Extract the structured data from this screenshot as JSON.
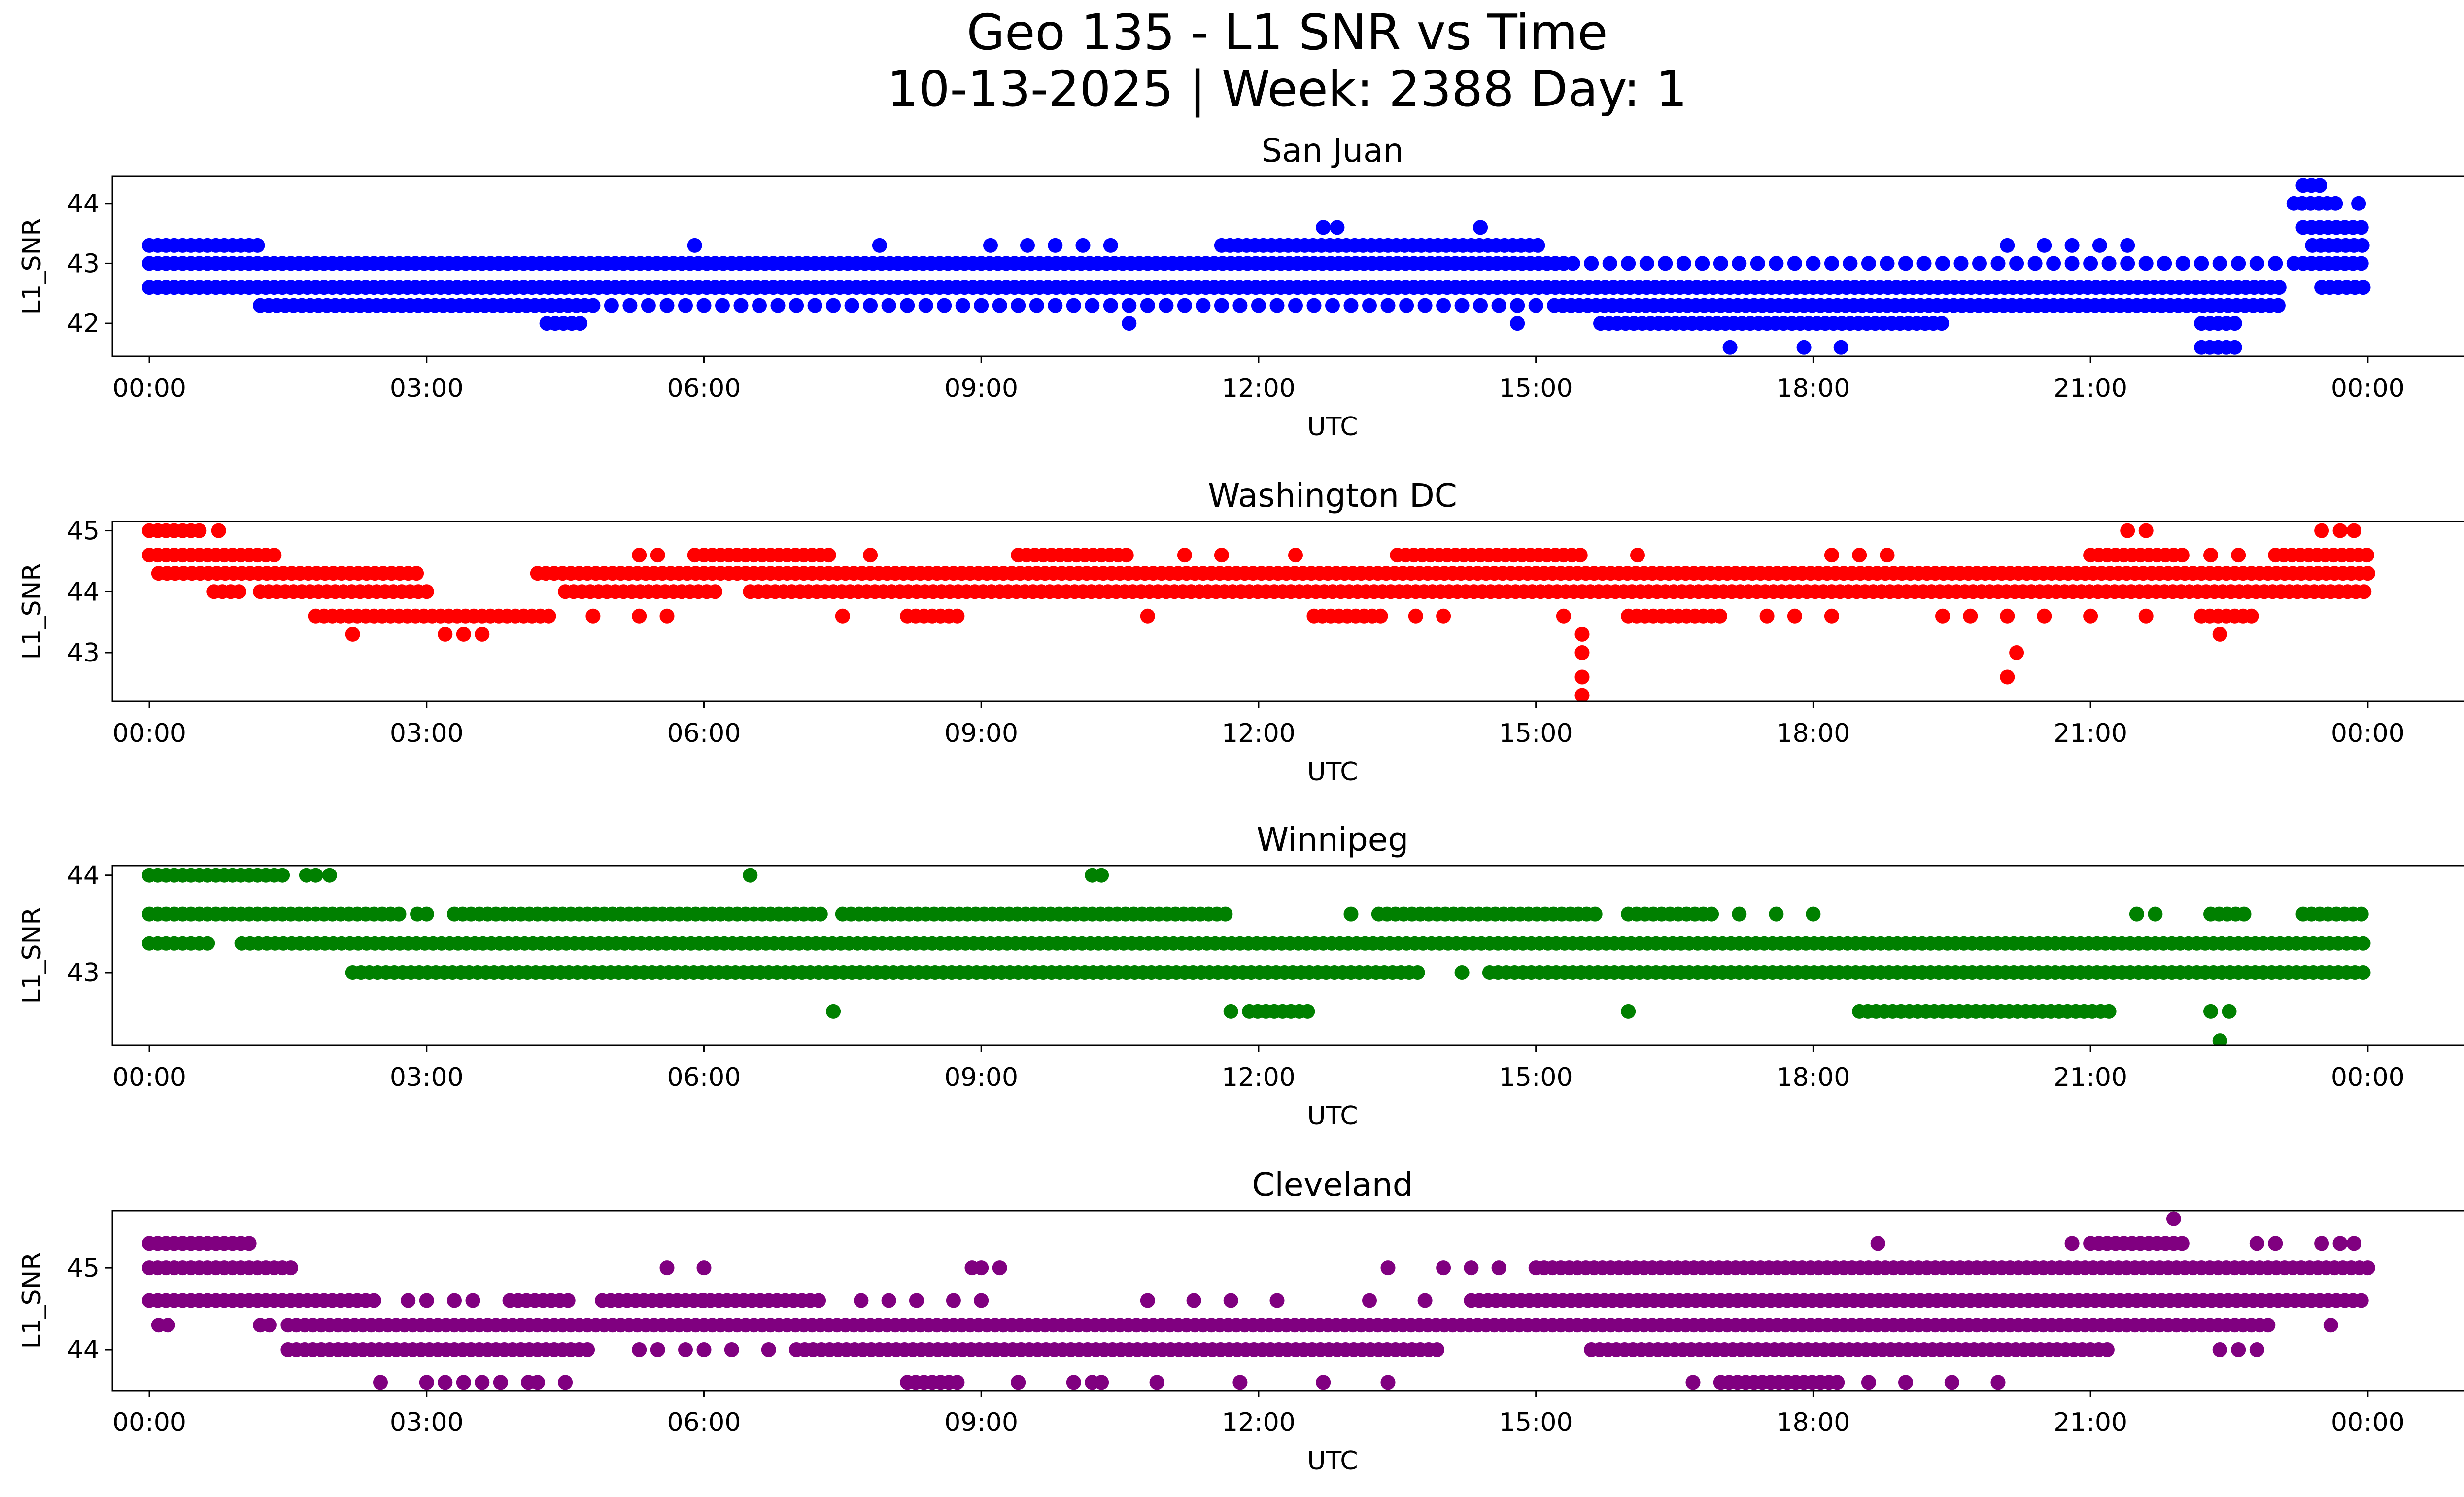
{
  "figure": {
    "title_line1": "Geo 135 - L1 SNR vs Time",
    "title_line2": "10-13-2025 | Week: 2388 Day: 1"
  },
  "chart_data": [
    {
      "type": "scatter",
      "title": "San Juan",
      "xlabel": "UTC",
      "ylabel": "L1_SNR",
      "color": "#0000ff",
      "x_unit": "hours",
      "xlim": [
        -0.4,
        26.0
      ],
      "ylim": [
        41.45,
        44.45
      ],
      "x_ticks": [
        0,
        3,
        6,
        9,
        12,
        15,
        18,
        21,
        24
      ],
      "x_tick_labels": [
        "00:00",
        "03:00",
        "06:00",
        "09:00",
        "12:00",
        "15:00",
        "18:00",
        "21:00",
        "00:00"
      ],
      "y_ticks": [
        42,
        43,
        44
      ],
      "y_tick_labels": [
        "42",
        "43",
        "44"
      ],
      "levels": [
        {
          "y": 42.6,
          "segments": [
            [
              0.0,
              23.1
            ],
            [
              23.5,
              24.0
            ]
          ]
        },
        {
          "y": 43.0,
          "segments": [
            [
              0.0,
              15.3
            ],
            [
              23.3,
              24.0
            ]
          ],
          "points": [
            15.4,
            15.6,
            15.8,
            16.0,
            16.2,
            16.4,
            16.6,
            16.8,
            17.0,
            17.2,
            17.4,
            17.6,
            17.8,
            18.0,
            18.2,
            18.4,
            18.6,
            18.8,
            19.0,
            19.2,
            19.4,
            19.6,
            19.8,
            20.0,
            20.2,
            20.4,
            20.6,
            20.8,
            21.0,
            21.2,
            21.4,
            21.6,
            21.8,
            22.0,
            22.2,
            22.4,
            22.6,
            22.8,
            23.0,
            23.2
          ]
        },
        {
          "y": 42.3,
          "segments": [
            [
              1.2,
              4.8
            ],
            [
              15.2,
              23.1
            ]
          ],
          "points": [
            5.0,
            5.2,
            5.4,
            5.6,
            5.8,
            6.0,
            6.2,
            6.4,
            6.6,
            6.8,
            7.0,
            7.2,
            7.4,
            7.6,
            7.8,
            8.0,
            8.2,
            8.4,
            8.6,
            8.8,
            9.0,
            9.2,
            9.4,
            9.6,
            9.8,
            10.0,
            10.2,
            10.4,
            10.6,
            10.8,
            11.0,
            11.2,
            11.4,
            11.6,
            11.8,
            12.0,
            12.2,
            12.4,
            12.6,
            12.8,
            13.0,
            13.2,
            13.4,
            13.6,
            13.8,
            14.0,
            14.2,
            14.4,
            14.6,
            14.8,
            15.0
          ]
        },
        {
          "y": 43.3,
          "segments": [
            [
              0.0,
              1.2
            ],
            [
              11.6,
              15.1
            ],
            [
              23.4,
              24.0
            ]
          ],
          "points": [
            5.9,
            7.9,
            9.1,
            9.5,
            9.8,
            10.1,
            10.4,
            20.1,
            20.5,
            20.8,
            21.1,
            21.4
          ]
        },
        {
          "y": 42.0,
          "segments": [
            [
              4.3,
              4.7
            ],
            [
              15.7,
              19.4
            ],
            [
              22.2,
              22.6
            ]
          ],
          "points": [
            10.6,
            14.8
          ]
        },
        {
          "y": 43.6,
          "segments": [
            [
              23.3,
              24.0
            ]
          ],
          "points": [
            12.7,
            12.85,
            14.4
          ]
        },
        {
          "y": 44.0,
          "segments": [
            [
              23.2,
              23.7
            ]
          ],
          "points": [
            23.9
          ]
        },
        {
          "y": 44.3,
          "segments": [
            [
              23.3,
              23.5
            ]
          ]
        },
        {
          "y": 41.6,
          "segments": [
            [
              22.2,
              22.6
            ]
          ],
          "points": [
            17.1,
            17.9,
            18.3
          ]
        }
      ]
    },
    {
      "type": "scatter",
      "title": "Washington DC",
      "xlabel": "UTC",
      "ylabel": "L1_SNR",
      "color": "#ff0000",
      "x_unit": "hours",
      "xlim": [
        -0.4,
        26.0
      ],
      "ylim": [
        42.2,
        45.15
      ],
      "x_ticks": [
        0,
        3,
        6,
        9,
        12,
        15,
        18,
        21,
        24
      ],
      "x_tick_labels": [
        "00:00",
        "03:00",
        "06:00",
        "09:00",
        "12:00",
        "15:00",
        "18:00",
        "21:00",
        "00:00"
      ],
      "y_ticks": [
        43,
        44,
        45
      ],
      "y_tick_labels": [
        "43",
        "44",
        "45"
      ],
      "levels": [
        {
          "y": 44.3,
          "segments": [
            [
              0.1,
              2.9
            ],
            [
              4.2,
              24.0
            ]
          ]
        },
        {
          "y": 44.0,
          "segments": [
            [
              0.7,
              1.0
            ],
            [
              1.2,
              3.0
            ],
            [
              4.5,
              6.2
            ],
            [
              6.5,
              24.0
            ]
          ]
        },
        {
          "y": 44.6,
          "segments": [
            [
              0.0,
              1.4
            ],
            [
              6.0,
              7.4
            ],
            [
              9.4,
              10.6
            ],
            [
              13.5,
              15.5
            ],
            [
              21.0,
              22.0
            ],
            [
              23.0,
              24.0
            ]
          ],
          "points": [
            5.3,
            5.5,
            5.9,
            7.8,
            11.2,
            11.6,
            12.4,
            16.1,
            18.2,
            18.5,
            18.8,
            22.3,
            22.6
          ]
        },
        {
          "y": 43.6,
          "segments": [
            [
              1.8,
              4.4
            ],
            [
              8.2,
              8.8
            ],
            [
              12.6,
              13.4
            ],
            [
              16.0,
              17.0
            ],
            [
              22.2,
              22.8
            ]
          ],
          "points": [
            4.8,
            5.3,
            5.6,
            7.5,
            10.8,
            13.7,
            14.0,
            15.3,
            17.5,
            17.8,
            18.2,
            19.4,
            19.7,
            20.1,
            20.5,
            21.0,
            21.6
          ]
        },
        {
          "y": 43.3,
          "points": [
            2.2,
            3.2,
            3.4,
            3.6,
            15.5,
            22.4
          ]
        },
        {
          "y": 43.0,
          "points": [
            15.5,
            20.2
          ]
        },
        {
          "y": 42.6,
          "points": [
            15.5,
            20.1
          ]
        },
        {
          "y": 42.3,
          "points": [
            15.5
          ]
        },
        {
          "y": 45.0,
          "segments": [
            [
              0.0,
              0.6
            ]
          ],
          "points": [
            0.75,
            21.4,
            21.6,
            23.5,
            23.7,
            23.85
          ]
        }
      ]
    },
    {
      "type": "scatter",
      "title": "Winnipeg",
      "xlabel": "UTC",
      "ylabel": "L1_SNR",
      "color": "#008000",
      "x_unit": "hours",
      "xlim": [
        -0.4,
        26.0
      ],
      "ylim": [
        42.25,
        44.1
      ],
      "x_ticks": [
        0,
        3,
        6,
        9,
        12,
        15,
        18,
        21,
        24
      ],
      "x_tick_labels": [
        "00:00",
        "03:00",
        "06:00",
        "09:00",
        "12:00",
        "15:00",
        "18:00",
        "21:00",
        "00:00"
      ],
      "y_ticks": [
        43,
        44
      ],
      "y_tick_labels": [
        "43",
        "44"
      ],
      "levels": [
        {
          "y": 43.3,
          "segments": [
            [
              0.0,
              0.7
            ],
            [
              1.0,
              24.0
            ]
          ]
        },
        {
          "y": 43.6,
          "segments": [
            [
              0.0,
              2.7
            ],
            [
              3.3,
              7.3
            ],
            [
              7.5,
              11.7
            ],
            [
              13.3,
              15.7
            ],
            [
              16.0,
              16.9
            ],
            [
              22.3,
              22.7
            ],
            [
              23.3,
              24.0
            ]
          ],
          "points": [
            2.9,
            3.0,
            13.0,
            17.2,
            17.6,
            18.0,
            21.5,
            21.7
          ]
        },
        {
          "y": 43.0,
          "segments": [
            [
              2.2,
              13.8
            ],
            [
              14.5,
              24.0
            ]
          ],
          "points": [
            14.2
          ]
        },
        {
          "y": 44.0,
          "segments": [
            [
              0.0,
              1.5
            ]
          ],
          "points": [
            1.7,
            1.8,
            1.95,
            6.5,
            10.2,
            10.3
          ]
        },
        {
          "y": 42.6,
          "segments": [
            [
              11.9,
              12.6
            ],
            [
              18.5,
              21.2
            ]
          ],
          "points": [
            7.4,
            11.7,
            16.0,
            22.3,
            22.5
          ]
        },
        {
          "y": 42.3,
          "points": [
            22.4
          ]
        }
      ]
    },
    {
      "type": "scatter",
      "title": "Cleveland",
      "xlabel": "UTC",
      "ylabel": "L1_SNR",
      "color": "#800080",
      "x_unit": "hours",
      "xlim": [
        -0.4,
        26.0
      ],
      "ylim": [
        43.5,
        45.7
      ],
      "x_ticks": [
        0,
        3,
        6,
        9,
        12,
        15,
        18,
        21,
        24
      ],
      "x_tick_labels": [
        "00:00",
        "03:00",
        "06:00",
        "09:00",
        "12:00",
        "15:00",
        "18:00",
        "21:00",
        "00:00"
      ],
      "y_ticks": [
        44,
        45
      ],
      "y_tick_labels": [
        "44",
        "45"
      ],
      "levels": [
        {
          "y": 44.3,
          "segments": [
            [
              1.5,
              23.0
            ]
          ],
          "points": [
            0.1,
            0.2,
            1.2,
            1.3
          ]
        },
        {
          "y": 44.6,
          "segments": [
            [
              0.0,
              2.5
            ],
            [
              3.9,
              4.6
            ],
            [
              4.9,
              7.3
            ],
            [
              14.3,
              24.0
            ]
          ],
          "points": [
            2.8,
            3.0,
            3.3,
            3.5,
            6.0,
            7.7,
            8.0,
            8.3,
            8.7,
            9.0,
            10.8,
            11.3,
            11.7,
            12.2,
            13.2,
            13.8
          ]
        },
        {
          "y": 44.0,
          "segments": [
            [
              1.5,
              4.8
            ],
            [
              7.0,
              14.0
            ],
            [
              15.6,
              21.2
            ]
          ],
          "points": [
            5.3,
            5.5,
            5.8,
            6.0,
            6.3,
            6.7,
            22.4,
            22.6,
            22.8
          ]
        },
        {
          "y": 45.0,
          "segments": [
            [
              0.0,
              1.6
            ],
            [
              15.0,
              24.0
            ]
          ],
          "points": [
            5.6,
            6.0,
            8.9,
            9.0,
            9.2,
            13.4,
            14.0,
            14.3,
            14.6
          ]
        },
        {
          "y": 45.3,
          "segments": [
            [
              0.0,
              1.1
            ],
            [
              21.0,
              22.0
            ]
          ],
          "points": [
            18.7,
            20.8,
            22.8,
            23.0,
            23.5,
            23.7,
            23.85
          ]
        },
        {
          "y": 43.6,
          "segments": [
            [
              8.2,
              8.8
            ],
            [
              17.0,
              18.3
            ]
          ],
          "points": [
            2.5,
            3.0,
            3.2,
            3.4,
            3.6,
            3.8,
            4.1,
            4.2,
            4.5,
            9.4,
            10.0,
            10.2,
            10.3,
            10.9,
            11.8,
            12.7,
            13.4,
            16.7,
            18.6,
            19.0,
            19.5,
            20.0
          ]
        },
        {
          "y": 45.6,
          "points": [
            21.9
          ]
        },
        {
          "y": 44.3,
          "points": [
            23.6
          ]
        }
      ]
    }
  ]
}
